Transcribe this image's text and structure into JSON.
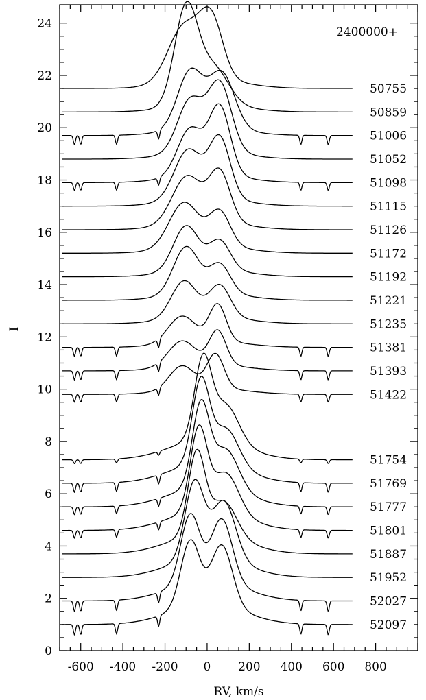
{
  "chart_data": {
    "type": "line",
    "title": "",
    "xlabel": "RV, km/s",
    "ylabel": "I",
    "xlim": [
      -700,
      1000
    ],
    "ylim": [
      0,
      24.7
    ],
    "x_ticks": [
      -600,
      -400,
      -200,
      0,
      200,
      400,
      600,
      800
    ],
    "x_tick_labels": [
      "-600",
      "-400",
      "-200",
      "0",
      "200",
      "400",
      "600",
      "800"
    ],
    "y_ticks": [
      0,
      2,
      4,
      6,
      8,
      10,
      12,
      14,
      16,
      18,
      20,
      22,
      24
    ],
    "y_tick_labels": [
      "0",
      "2",
      "4",
      "6",
      "8",
      "10",
      "12",
      "14",
      "16",
      "18",
      "20",
      "22",
      "24"
    ],
    "annotation": "2400000+",
    "x_range_profiles": [
      -690,
      690
    ],
    "series": [
      {
        "name": "50755",
        "baseline": 21.5,
        "blue_peak": {
          "v": -110,
          "h": 2.1,
          "w": 75
        },
        "red_peak": {
          "v": 20,
          "h": 2.2,
          "w": 55
        },
        "wings": 0.35,
        "dips": 0.0
      },
      {
        "name": "50859",
        "baseline": 20.6,
        "blue_peak": {
          "v": -100,
          "h": 3.7,
          "w": 55
        },
        "red_peak": {
          "v": 30,
          "h": 1.4,
          "w": 70
        },
        "wings": 0.3,
        "dips": 0.0
      },
      {
        "name": "51006",
        "baseline": 19.7,
        "blue_peak": {
          "v": -80,
          "h": 2.2,
          "w": 60
        },
        "red_peak": {
          "v": 70,
          "h": 2.1,
          "w": 60
        },
        "wings": 0.3,
        "dips": 0.35
      },
      {
        "name": "51052",
        "baseline": 18.8,
        "blue_peak": {
          "v": -80,
          "h": 2.0,
          "w": 60
        },
        "red_peak": {
          "v": 60,
          "h": 2.6,
          "w": 55
        },
        "wings": 0.3,
        "dips": 0.0
      },
      {
        "name": "51098",
        "baseline": 17.9,
        "blue_peak": {
          "v": -80,
          "h": 1.8,
          "w": 60
        },
        "red_peak": {
          "v": 60,
          "h": 2.6,
          "w": 50
        },
        "wings": 0.3,
        "dips": 0.3
      },
      {
        "name": "51115",
        "baseline": 17.0,
        "blue_peak": {
          "v": -90,
          "h": 1.9,
          "w": 65
        },
        "red_peak": {
          "v": 60,
          "h": 2.3,
          "w": 50
        },
        "wings": 0.3,
        "dips": 0.0
      },
      {
        "name": "51126",
        "baseline": 16.1,
        "blue_peak": {
          "v": -95,
          "h": 1.8,
          "w": 70
        },
        "red_peak": {
          "v": 60,
          "h": 1.9,
          "w": 50
        },
        "wings": 0.3,
        "dips": 0.0
      },
      {
        "name": "51172",
        "baseline": 15.2,
        "blue_peak": {
          "v": -110,
          "h": 1.7,
          "w": 70
        },
        "red_peak": {
          "v": 60,
          "h": 1.3,
          "w": 50
        },
        "wings": 0.3,
        "dips": 0.0
      },
      {
        "name": "51192",
        "baseline": 14.3,
        "blue_peak": {
          "v": -100,
          "h": 1.7,
          "w": 60
        },
        "red_peak": {
          "v": 60,
          "h": 1.1,
          "w": 50
        },
        "wings": 0.3,
        "dips": 0.0
      },
      {
        "name": "51221",
        "baseline": 13.4,
        "blue_peak": {
          "v": -100,
          "h": 1.8,
          "w": 60
        },
        "red_peak": {
          "v": 60,
          "h": 1.1,
          "w": 50
        },
        "wings": 0.3,
        "dips": 0.0
      },
      {
        "name": "51235",
        "baseline": 12.5,
        "blue_peak": {
          "v": -110,
          "h": 1.4,
          "w": 60
        },
        "red_peak": {
          "v": 60,
          "h": 1.2,
          "w": 50
        },
        "wings": 0.3,
        "dips": 0.0
      },
      {
        "name": "51381",
        "baseline": 11.6,
        "blue_peak": {
          "v": -120,
          "h": 1.0,
          "w": 65
        },
        "red_peak": {
          "v": 50,
          "h": 1.4,
          "w": 40
        },
        "wings": 0.25,
        "dips": 0.35
      },
      {
        "name": "51393",
        "baseline": 10.7,
        "blue_peak": {
          "v": -120,
          "h": 0.95,
          "w": 65
        },
        "red_peak": {
          "v": 50,
          "h": 1.3,
          "w": 40
        },
        "wings": 0.25,
        "dips": 0.35
      },
      {
        "name": "51422",
        "baseline": 9.8,
        "blue_peak": {
          "v": -120,
          "h": 0.9,
          "w": 60
        },
        "red_peak": {
          "v": 40,
          "h": 1.3,
          "w": 40
        },
        "wings": 0.25,
        "dips": 0.3
      },
      {
        "name": "51754",
        "baseline": 7.3,
        "blue_peak": {
          "v": -20,
          "h": 3.0,
          "w": 40
        },
        "red_peak": {
          "v": 90,
          "h": 1.4,
          "w": 60
        },
        "wings": 0.8,
        "dips": 0.15
      },
      {
        "name": "51769",
        "baseline": 6.4,
        "blue_peak": {
          "v": -30,
          "h": 3.1,
          "w": 40
        },
        "red_peak": {
          "v": 90,
          "h": 1.4,
          "w": 60
        },
        "wings": 0.8,
        "dips": 0.35
      },
      {
        "name": "51777",
        "baseline": 5.5,
        "blue_peak": {
          "v": -30,
          "h": 3.1,
          "w": 40
        },
        "red_peak": {
          "v": 90,
          "h": 1.5,
          "w": 60
        },
        "wings": 0.8,
        "dips": 0.3
      },
      {
        "name": "51801",
        "baseline": 4.6,
        "blue_peak": {
          "v": -40,
          "h": 3.1,
          "w": 40
        },
        "red_peak": {
          "v": 90,
          "h": 1.5,
          "w": 60
        },
        "wings": 0.8,
        "dips": 0.3
      },
      {
        "name": "51887",
        "baseline": 3.7,
        "blue_peak": {
          "v": -50,
          "h": 3.1,
          "w": 40
        },
        "red_peak": {
          "v": 80,
          "h": 1.3,
          "w": 60
        },
        "wings": 0.8,
        "dips": 0.0
      },
      {
        "name": "51952",
        "baseline": 2.8,
        "blue_peak": {
          "v": -60,
          "h": 2.9,
          "w": 45
        },
        "red_peak": {
          "v": 80,
          "h": 2.2,
          "w": 55
        },
        "wings": 0.8,
        "dips": 0.0
      },
      {
        "name": "52027",
        "baseline": 1.9,
        "blue_peak": {
          "v": -80,
          "h": 2.6,
          "w": 45
        },
        "red_peak": {
          "v": 70,
          "h": 2.4,
          "w": 50
        },
        "wings": 0.8,
        "dips": 0.4
      },
      {
        "name": "52097",
        "baseline": 1.0,
        "blue_peak": {
          "v": -80,
          "h": 2.5,
          "w": 45
        },
        "red_peak": {
          "v": 70,
          "h": 2.3,
          "w": 50
        },
        "wings": 0.8,
        "dips": 0.4
      }
    ]
  }
}
